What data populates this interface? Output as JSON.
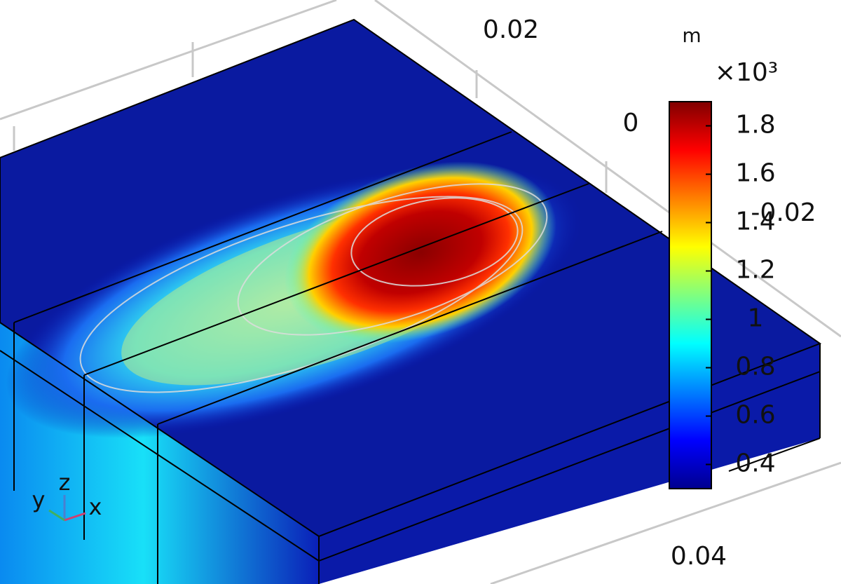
{
  "axis_unit": "m",
  "axis_labels": [
    "0.02",
    "0",
    "-0.02",
    "0.04"
  ],
  "colorbar": {
    "exponent": "×10³",
    "range": [
      0.3,
      1.9
    ],
    "ticks": [
      0.4,
      0.6,
      0.8,
      1,
      1.2,
      1.4,
      1.6,
      1.8
    ]
  },
  "triad": [
    "y",
    "z",
    "x"
  ]
}
